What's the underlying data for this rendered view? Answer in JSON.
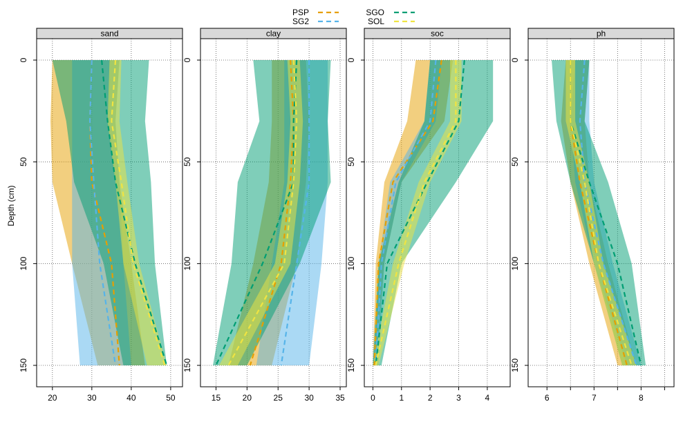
{
  "chart_data": {
    "type": "line",
    "ylabel": "Depth (cm)",
    "depth": [
      0,
      30,
      60,
      100,
      150
    ],
    "ylim": [
      0,
      150
    ],
    "y_ticks": [
      0,
      50,
      100,
      150
    ],
    "legend": [
      {
        "name": "PSP",
        "color": "#E69F00"
      },
      {
        "name": "SG2",
        "color": "#56B4E9"
      },
      {
        "name": "SGO",
        "color": "#009E73"
      },
      {
        "name": "SOL",
        "color": "#F0E442"
      }
    ],
    "panels": [
      {
        "title": "sand",
        "xlim": [
          16,
          53
        ],
        "x_ticks": [
          20,
          30,
          40,
          50
        ],
        "series": [
          {
            "name": "PSP",
            "mean": [
              30,
              29.5,
              30,
              35,
              37
            ],
            "lower": [
              20,
              19.5,
              20,
              25,
              31.5
            ],
            "upper": [
              37,
              36,
              37,
              40,
              43.5
            ]
          },
          {
            "name": "SG2",
            "mean": [
              30,
              29.5,
              30.5,
              32,
              36
            ],
            "lower": [
              25,
              25,
              25,
              25,
              27
            ],
            "upper": [
              37,
              36,
              37,
              38,
              40
            ]
          },
          {
            "name": "SGO",
            "mean": [
              32.5,
              34,
              36,
              41,
              49
            ],
            "lower": [
              20,
              23.5,
              25.5,
              33,
              38
            ],
            "upper": [
              44.5,
              43.5,
              45,
              46,
              49
            ]
          },
          {
            "name": "SOL",
            "mean": [
              36,
              35,
              37.5,
              40.5,
              48.5
            ],
            "lower": [
              34.5,
              34,
              36,
              38,
              44
            ],
            "upper": [
              37.5,
              37,
              39,
              42,
              49
            ]
          }
        ]
      },
      {
        "title": "clay",
        "xlim": [
          12.5,
          36
        ],
        "x_ticks": [
          15,
          20,
          25,
          30,
          35
        ],
        "series": [
          {
            "name": "PSP",
            "mean": [
              27,
              27.5,
              27,
              25.5,
              20.5
            ],
            "lower": [
              24,
              24,
              23.5,
              21,
              17
            ],
            "upper": [
              29.5,
              30,
              29.5,
              28,
              24
            ]
          },
          {
            "name": "SG2",
            "mean": [
              30,
              30,
              30,
              28,
              25.5
            ],
            "lower": [
              26,
              26,
              26,
              24,
              21.5
            ],
            "upper": [
              33,
              33,
              33,
              32,
              30
            ]
          },
          {
            "name": "SGO",
            "mean": [
              28,
              27.5,
              27.5,
              22.5,
              15
            ],
            "lower": [
              21,
              22,
              18.5,
              17.5,
              14.5
            ],
            "upper": [
              33.5,
              33,
              33.5,
              28.5,
              20
            ]
          },
          {
            "name": "SOL",
            "mean": [
              27.5,
              28,
              27.5,
              26,
              17
            ],
            "lower": [
              26.5,
              27,
              26.5,
              24.5,
              15.5
            ],
            "upper": [
              28.5,
              29,
              28.5,
              27,
              18.5
            ]
          }
        ]
      },
      {
        "title": "soc",
        "xlim": [
          -0.3,
          4.8
        ],
        "x_ticks": [
          0,
          1,
          2,
          3,
          4
        ],
        "series": [
          {
            "name": "PSP",
            "mean": [
              2.4,
              2.1,
              0.7,
              0.2,
              0.05
            ],
            "lower": [
              1.5,
              1.2,
              0.4,
              0.1,
              0.0
            ],
            "upper": [
              2.8,
              2.5,
              1.0,
              0.4,
              0.1
            ]
          },
          {
            "name": "SG2",
            "mean": [
              2.2,
              2.0,
              0.8,
              0.3,
              0.1
            ],
            "lower": [
              2.0,
              1.8,
              0.6,
              0.2,
              0.0
            ],
            "upper": [
              2.4,
              2.2,
              1.0,
              0.4,
              0.2
            ]
          },
          {
            "name": "SGO",
            "mean": [
              3.2,
              3.0,
              1.9,
              0.5,
              0.1
            ],
            "lower": [
              2.0,
              1.8,
              0.9,
              0.2,
              0.0
            ],
            "upper": [
              4.2,
              4.2,
              2.9,
              1.0,
              0.3
            ]
          },
          {
            "name": "SOL",
            "mean": [
              2.9,
              2.9,
              1.8,
              0.9,
              0.1
            ],
            "lower": [
              2.7,
              2.7,
              1.6,
              0.7,
              0.0
            ],
            "upper": [
              3.1,
              3.1,
              2.0,
              1.1,
              0.2
            ]
          }
        ]
      },
      {
        "title": "ph",
        "xlim": [
          5.6,
          8.7
        ],
        "x_ticks": [
          6,
          6.5,
          7,
          7.5,
          8,
          8.5
        ],
        "x_tick_labels": [
          "6",
          "",
          "7",
          "",
          "8",
          ""
        ],
        "series": [
          {
            "name": "PSP",
            "mean": [
              6.5,
              6.5,
              6.7,
              7.1,
              7.7
            ],
            "lower": [
              6.4,
              6.3,
              6.5,
              6.9,
              7.5
            ],
            "upper": [
              6.9,
              6.8,
              6.9,
              7.3,
              7.9
            ]
          },
          {
            "name": "SG2",
            "mean": [
              6.8,
              6.7,
              6.8,
              7.2,
              7.9
            ],
            "lower": [
              6.6,
              6.5,
              6.6,
              7.0,
              7.7
            ],
            "upper": [
              6.9,
              6.9,
              7.0,
              7.4,
              8.0
            ]
          },
          {
            "name": "SGO",
            "mean": [
              6.5,
              6.5,
              6.9,
              7.5,
              8.0
            ],
            "lower": [
              6.1,
              6.2,
              6.5,
              7.0,
              7.6
            ],
            "upper": [
              6.9,
              6.8,
              7.3,
              7.8,
              8.1
            ]
          },
          {
            "name": "SOL",
            "mean": [
              6.5,
              6.5,
              6.8,
              7.1,
              7.8
            ],
            "lower": [
              6.4,
              6.4,
              6.7,
              7.0,
              7.6
            ],
            "upper": [
              6.6,
              6.6,
              6.9,
              7.2,
              7.9
            ]
          }
        ]
      }
    ]
  }
}
